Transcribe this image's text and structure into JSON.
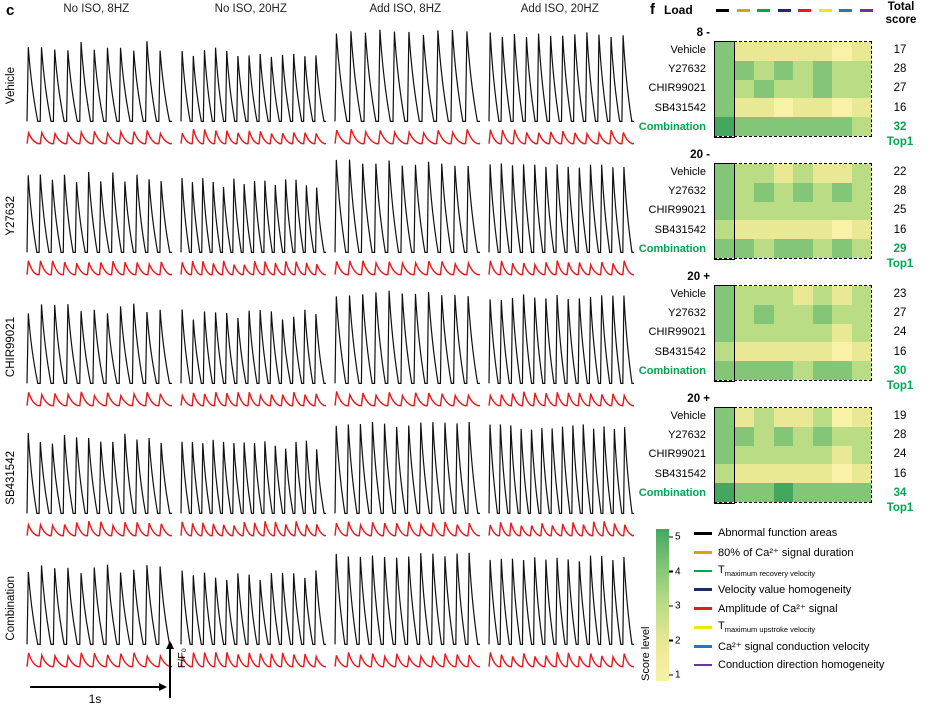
{
  "panel_c": {
    "panel_label": "c",
    "col_headers": [
      "No ISO, 8HZ",
      "No ISO, 20HZ",
      "Add ISO, 8HZ",
      "Add ISO, 20HZ"
    ],
    "row_labels": [
      "Vehicle",
      "Y27632",
      "CHIR99021",
      "SB431542",
      "Combination"
    ],
    "peak_counts": [
      [
        11,
        13,
        10,
        12
      ],
      [
        12,
        14,
        11,
        13
      ],
      [
        11,
        13,
        11,
        13
      ],
      [
        12,
        14,
        12,
        14
      ],
      [
        11,
        13,
        12,
        13
      ]
    ],
    "col_amplitudes": [
      0.8,
      0.72,
      0.97,
      0.92
    ],
    "trace_colors": {
      "signal": "#111111",
      "amplitude": "#E8191C"
    },
    "scale_bar_label": "1s",
    "y_axis_label": "F/F₀"
  },
  "panel_f": {
    "panel_label": "f",
    "load_header": "Load",
    "total_header_line1": "Total",
    "total_header_line2": "score",
    "top_label": "Top1",
    "accent_green": "#00A651",
    "highlight_row": "Combination",
    "column_marker_colors": [
      "#000000",
      "#D9A400",
      "#00A550",
      "#1F2B66",
      "#E8191C",
      "#F2E50B",
      "#2E75B6",
      "#7030A0"
    ],
    "blocks": [
      {
        "load": "8 -"
      },
      {
        "load": "20 -"
      },
      {
        "load": "20 +"
      },
      {
        "load": "20 +"
      }
    ],
    "score_palette": {
      "1": "#F8F1A6",
      "2": "#E9E894",
      "3": "#BADC85",
      "4": "#83C678",
      "5": "#43A75F"
    },
    "colorbar": {
      "label": "Score level",
      "ticks": [
        "5",
        "4",
        "3",
        "2",
        "1"
      ],
      "colors_top_to_bottom": [
        "#43A75F",
        "#83C678",
        "#BADC85",
        "#E9E894",
        "#F8F1A6"
      ]
    },
    "legend": [
      {
        "color": "#000000",
        "parts": [
          [
            "n",
            "Abnormal function areas"
          ]
        ]
      },
      {
        "color": "#D9A400",
        "parts": [
          [
            "n",
            "80% of Ca²⁺ signal duration"
          ]
        ]
      },
      {
        "color": "#00A550",
        "parts": [
          [
            "n",
            "T"
          ],
          [
            "sub",
            "maximum recovery velocity"
          ]
        ]
      },
      {
        "color": "#1F2B66",
        "parts": [
          [
            "n",
            "Velocity value homogeneity"
          ]
        ]
      },
      {
        "color": "#E8191C",
        "parts": [
          [
            "n",
            "Amplitude of Ca²⁺ signal"
          ]
        ]
      },
      {
        "color": "#F2E50B",
        "parts": [
          [
            "n",
            "T"
          ],
          [
            "sub",
            "maximum upstroke velocity"
          ]
        ]
      },
      {
        "color": "#2E75B6",
        "parts": [
          [
            "n",
            "Ca²⁺ signal conduction velocity"
          ]
        ]
      },
      {
        "color": "#7030A0",
        "parts": [
          [
            "n",
            "Conduction direction homogeneity"
          ]
        ]
      }
    ]
  },
  "chart_data": [
    {
      "type": "heatmap",
      "title": "Load 8 -",
      "rows": [
        "Vehicle",
        "Y27632",
        "CHIR99021",
        "SB431542",
        "Combination"
      ],
      "columns": [
        "Abnormal function areas",
        "80% of Ca²⁺ signal duration",
        "T maximum recovery velocity",
        "Velocity value homogeneity",
        "Amplitude of Ca²⁺ signal",
        "T maximum upstroke velocity",
        "Ca²⁺ signal conduction velocity",
        "Conduction direction homogeneity"
      ],
      "values": [
        [
          4,
          2,
          2,
          2,
          2,
          2,
          1,
          2
        ],
        [
          4,
          4,
          3,
          4,
          3,
          4,
          3,
          3
        ],
        [
          4,
          3,
          4,
          3,
          3,
          4,
          3,
          3
        ],
        [
          4,
          2,
          2,
          1,
          2,
          2,
          1,
          2
        ],
        [
          5,
          4,
          4,
          4,
          4,
          4,
          4,
          3
        ]
      ],
      "totals": [
        17,
        28,
        27,
        16,
        32
      ],
      "top_row": "Combination",
      "value_range": [
        1,
        5
      ]
    },
    {
      "type": "heatmap",
      "title": "Load 20 -",
      "rows": [
        "Vehicle",
        "Y27632",
        "CHIR99021",
        "SB431542",
        "Combination"
      ],
      "columns": [
        "Abnormal function areas",
        "80% of Ca²⁺ signal duration",
        "T maximum recovery velocity",
        "Velocity value homogeneity",
        "Amplitude of Ca²⁺ signal",
        "T maximum upstroke velocity",
        "Ca²⁺ signal conduction velocity",
        "Conduction direction homogeneity"
      ],
      "values": [
        [
          4,
          3,
          3,
          2,
          3,
          2,
          2,
          3
        ],
        [
          4,
          3,
          4,
          3,
          4,
          3,
          4,
          3
        ],
        [
          4,
          3,
          3,
          3,
          3,
          3,
          3,
          3
        ],
        [
          3,
          2,
          2,
          2,
          2,
          2,
          1,
          2
        ],
        [
          4,
          4,
          3,
          4,
          4,
          3,
          4,
          3
        ]
      ],
      "totals": [
        22,
        28,
        25,
        16,
        29
      ],
      "top_row": "Combination",
      "value_range": [
        1,
        5
      ]
    },
    {
      "type": "heatmap",
      "title": "Load 20 +",
      "rows": [
        "Vehicle",
        "Y27632",
        "CHIR99021",
        "SB431542",
        "Combination"
      ],
      "columns": [
        "Abnormal function areas",
        "80% of Ca²⁺ signal duration",
        "T maximum recovery velocity",
        "Velocity value homogeneity",
        "Amplitude of Ca²⁺ signal",
        "T maximum upstroke velocity",
        "Ca²⁺ signal conduction velocity",
        "Conduction direction homogeneity"
      ],
      "values": [
        [
          4,
          3,
          3,
          3,
          2,
          3,
          2,
          3
        ],
        [
          4,
          3,
          4,
          3,
          3,
          4,
          3,
          3
        ],
        [
          4,
          3,
          3,
          3,
          3,
          3,
          2,
          3
        ],
        [
          3,
          2,
          2,
          2,
          2,
          2,
          1,
          2
        ],
        [
          4,
          4,
          4,
          4,
          3,
          4,
          4,
          3
        ]
      ],
      "totals": [
        23,
        27,
        24,
        16,
        30
      ],
      "top_row": "Combination",
      "value_range": [
        1,
        5
      ]
    },
    {
      "type": "heatmap",
      "title": "Load 20 +",
      "rows": [
        "Vehicle",
        "Y27632",
        "CHIR99021",
        "SB431542",
        "Combination"
      ],
      "columns": [
        "Abnormal function areas",
        "80% of Ca²⁺ signal duration",
        "T maximum recovery velocity",
        "Velocity value homogeneity",
        "Amplitude of Ca²⁺ signal",
        "T maximum upstroke velocity",
        "Ca²⁺ signal conduction velocity",
        "Conduction direction homogeneity"
      ],
      "values": [
        [
          4,
          2,
          3,
          2,
          2,
          3,
          1,
          2
        ],
        [
          4,
          4,
          3,
          4,
          3,
          4,
          3,
          3
        ],
        [
          4,
          3,
          3,
          3,
          3,
          3,
          2,
          3
        ],
        [
          3,
          2,
          2,
          2,
          2,
          2,
          1,
          2
        ],
        [
          5,
          4,
          4,
          5,
          4,
          4,
          4,
          4
        ]
      ],
      "totals": [
        19,
        28,
        24,
        16,
        34
      ],
      "top_row": "Combination",
      "value_range": [
        1,
        5
      ]
    }
  ]
}
